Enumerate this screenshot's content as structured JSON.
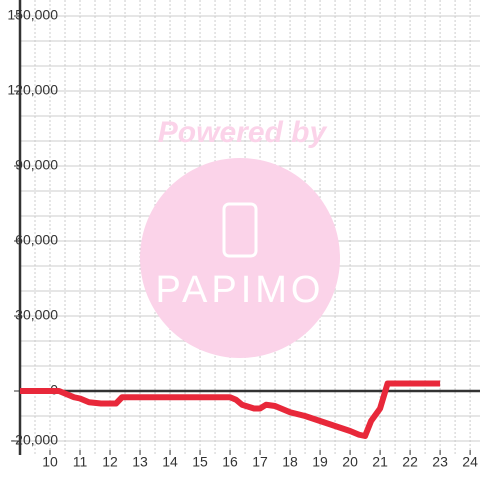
{
  "chart_data": {
    "type": "line",
    "watermark": {
      "title": "Powered by",
      "logo": "PAPIMO"
    },
    "x": [
      9,
      10,
      10.3,
      10.5,
      10.8,
      11,
      11.3,
      11.7,
      12.2,
      12.4,
      13,
      14,
      15,
      16,
      16.2,
      16.4,
      16.8,
      17,
      17.2,
      17.5,
      18,
      18.5,
      19,
      19.5,
      20,
      20.3,
      20.5,
      20.7,
      21,
      21.25,
      22,
      23
    ],
    "series": [
      {
        "color": "#e8283a",
        "values": [
          0,
          0,
          0,
          -1000,
          -2500,
          -3000,
          -4500,
          -5000,
          -5000,
          -2500,
          -2500,
          -2500,
          -2500,
          -2500,
          -3500,
          -5500,
          -7000,
          -7000,
          -5500,
          -6000,
          -8500,
          -10000,
          -12000,
          -14000,
          -16000,
          -17500,
          -18000,
          -12000,
          -7000,
          3000,
          3000,
          3000
        ]
      }
    ],
    "xlim": [
      9,
      24.33
    ],
    "xticks": [
      10,
      11,
      12,
      13,
      14,
      15,
      16,
      17,
      18,
      19,
      20,
      21,
      22,
      23,
      24
    ],
    "xminor": [
      9.5,
      10.5,
      11.5,
      12.5,
      13.5,
      14.5,
      15.5,
      16.5,
      17.5,
      18.5,
      19.5,
      20.5,
      21.5,
      22.5,
      23.5
    ],
    "ylim": [
      -20000,
      150000
    ],
    "yticks": [
      {
        "value": -20000,
        "label": "-20,000"
      },
      0,
      {
        "value": 30000,
        "label": "30,000"
      },
      {
        "value": 60000,
        "label": "60,000"
      },
      {
        "value": 90000,
        "label": "90,000"
      },
      {
        "value": 120000,
        "label": "120,000"
      },
      {
        "value": 150000,
        "label": "150,000"
      }
    ],
    "yminor": [
      -10000,
      10000,
      20000,
      40000,
      50000,
      70000,
      80000,
      100000,
      110000,
      130000,
      140000
    ],
    "grid": true
  }
}
